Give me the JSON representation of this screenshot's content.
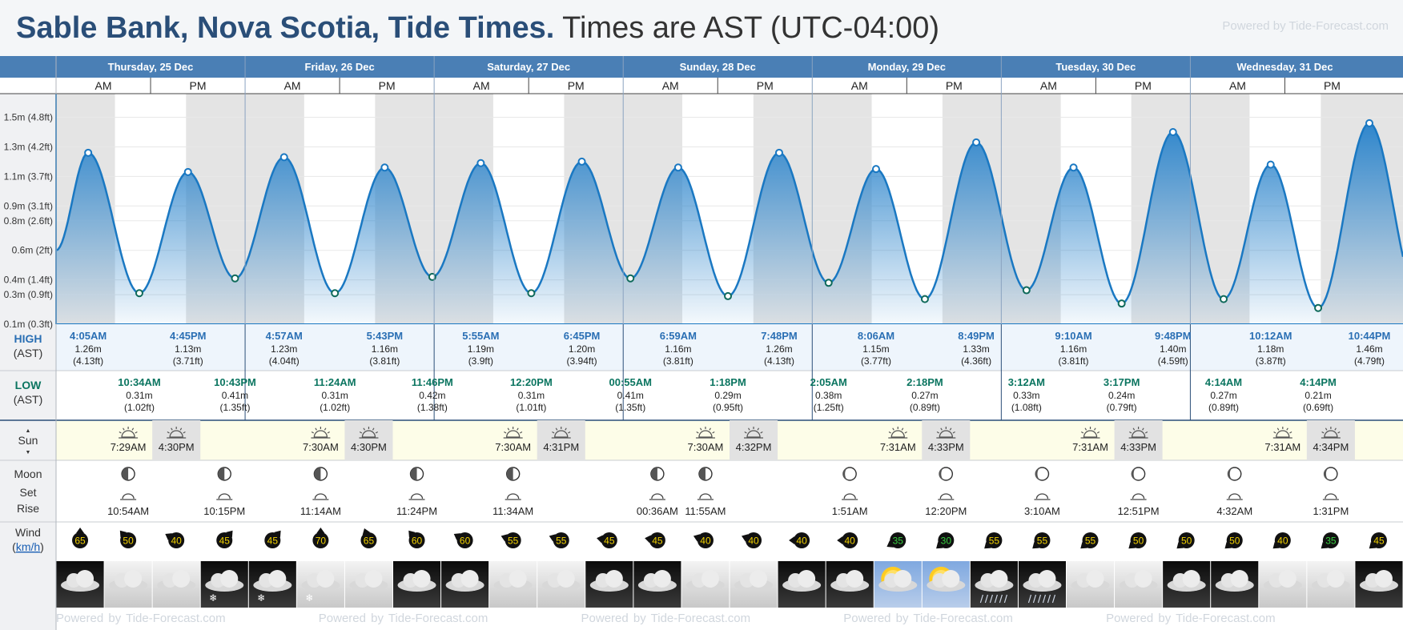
{
  "header": {
    "place": "Sable Bank, Nova Scotia, Tide Times.",
    "timezone": "Times are AST (UTC-04:00)",
    "powered": "Powered by Tide-Forecast.com"
  },
  "labels": {
    "high": "HIGH",
    "low": "LOW",
    "ast": "(AST)",
    "sun": "Sun",
    "moon": "Moon",
    "set": "Set",
    "rise": "Rise",
    "wind": "Wind",
    "wind_unit": "km/h",
    "am": "AM",
    "pm": "PM",
    "sun_arrow_up": "▲",
    "sun_arrow_down": "▼"
  },
  "colors": {
    "header_bar": "#4a7fb5",
    "tide_line": "#1a78c2",
    "tide_fill_top": "#2f86cc",
    "night_band": "#e4e4e4",
    "sun_row": "#fdfde8",
    "wind_high": "#f0d000",
    "wind_low": "#38d040"
  },
  "chart_data": {
    "type": "area",
    "ylabel": "",
    "yticks": [
      "0.1m (0.3ft)",
      "0.3m (0.9ft)",
      "0.4m (1.4ft)",
      "0.6m (2ft)",
      "0.8m (2.6ft)",
      "0.9m (3.1ft)",
      "1.1m (3.7ft)",
      "1.3m (4.2ft)",
      "1.5m (4.8ft)"
    ],
    "ytick_values": [
      0.1,
      0.3,
      0.4,
      0.6,
      0.8,
      0.9,
      1.1,
      1.3,
      1.5
    ],
    "ylim": [
      0.1,
      1.66
    ],
    "xlim_hours": [
      0,
      171
    ],
    "start_level": 0.6,
    "days": [
      "Thursday, 25 Dec",
      "Friday, 26 Dec",
      "Saturday, 27 Dec",
      "Sunday, 28 Dec",
      "Monday, 29 Dec",
      "Tuesday, 30 Dec",
      "Wednesday, 31 Dec"
    ],
    "night_bands": [
      [
        0,
        7.48
      ],
      [
        16.5,
        31.5
      ],
      [
        40.5,
        55.5
      ],
      [
        64.5,
        79.5
      ],
      [
        88.53,
        103.55
      ],
      [
        112.53,
        127.55
      ],
      [
        136.5,
        151.52
      ],
      [
        160.57,
        171
      ]
    ],
    "extremes": [
      {
        "h": 4.08,
        "v": 1.26,
        "type": "high",
        "time": "4:05AM",
        "m": "1.26m",
        "ft": "(4.13ft)"
      },
      {
        "h": 10.57,
        "v": 0.31,
        "type": "low",
        "time": "10:34AM",
        "m": "0.31m",
        "ft": "(1.02ft)"
      },
      {
        "h": 16.75,
        "v": 1.13,
        "type": "high",
        "time": "4:45PM",
        "m": "1.13m",
        "ft": "(3.71ft)"
      },
      {
        "h": 22.72,
        "v": 0.41,
        "type": "low",
        "time": "10:43PM",
        "m": "0.41m",
        "ft": "(1.35ft)"
      },
      {
        "h": 28.95,
        "v": 1.23,
        "type": "high",
        "time": "4:57AM",
        "m": "1.23m",
        "ft": "(4.04ft)"
      },
      {
        "h": 35.4,
        "v": 0.31,
        "type": "low",
        "time": "11:24AM",
        "m": "0.31m",
        "ft": "(1.02ft)"
      },
      {
        "h": 41.72,
        "v": 1.16,
        "type": "high",
        "time": "5:43PM",
        "m": "1.16m",
        "ft": "(3.81ft)"
      },
      {
        "h": 47.77,
        "v": 0.42,
        "type": "low",
        "time": "11:46PM",
        "m": "0.42m",
        "ft": "(1.38ft)"
      },
      {
        "h": 53.92,
        "v": 1.19,
        "type": "high",
        "time": "5:55AM",
        "m": "1.19m",
        "ft": "(3.9ft)"
      },
      {
        "h": 60.33,
        "v": 0.31,
        "type": "low",
        "time": "12:20PM",
        "m": "0.31m",
        "ft": "(1.01ft)"
      },
      {
        "h": 66.75,
        "v": 1.2,
        "type": "high",
        "time": "6:45PM",
        "m": "1.20m",
        "ft": "(3.94ft)"
      },
      {
        "h": 72.92,
        "v": 0.41,
        "type": "low",
        "time": "00:55AM",
        "m": "0.41m",
        "ft": "(1.35ft)"
      },
      {
        "h": 78.98,
        "v": 1.16,
        "type": "high",
        "time": "6:59AM",
        "m": "1.16m",
        "ft": "(3.81ft)"
      },
      {
        "h": 85.3,
        "v": 0.29,
        "type": "low",
        "time": "1:18PM",
        "m": "0.29m",
        "ft": "(0.95ft)"
      },
      {
        "h": 91.8,
        "v": 1.26,
        "type": "high",
        "time": "7:48PM",
        "m": "1.26m",
        "ft": "(4.13ft)"
      },
      {
        "h": 98.08,
        "v": 0.38,
        "type": "low",
        "time": "2:05AM",
        "m": "0.38m",
        "ft": "(1.25ft)"
      },
      {
        "h": 104.1,
        "v": 1.15,
        "type": "high",
        "time": "8:06AM",
        "m": "1.15m",
        "ft": "(3.77ft)"
      },
      {
        "h": 110.3,
        "v": 0.27,
        "type": "low",
        "time": "2:18PM",
        "m": "0.27m",
        "ft": "(0.89ft)"
      },
      {
        "h": 116.82,
        "v": 1.33,
        "type": "high",
        "time": "8:49PM",
        "m": "1.33m",
        "ft": "(4.36ft)"
      },
      {
        "h": 123.2,
        "v": 0.33,
        "type": "low",
        "time": "3:12AM",
        "m": "0.33m",
        "ft": "(1.08ft)"
      },
      {
        "h": 129.17,
        "v": 1.16,
        "type": "high",
        "time": "9:10AM",
        "m": "1.16m",
        "ft": "(3.81ft)"
      },
      {
        "h": 135.28,
        "v": 0.24,
        "type": "low",
        "time": "3:17PM",
        "m": "0.24m",
        "ft": "(0.79ft)"
      },
      {
        "h": 141.8,
        "v": 1.4,
        "type": "high",
        "time": "9:48PM",
        "m": "1.40m",
        "ft": "(4.59ft)"
      },
      {
        "h": 148.23,
        "v": 0.27,
        "type": "low",
        "time": "4:14AM",
        "m": "0.27m",
        "ft": "(0.89ft)"
      },
      {
        "h": 154.2,
        "v": 1.18,
        "type": "high",
        "time": "10:12AM",
        "m": "1.18m",
        "ft": "(3.87ft)"
      },
      {
        "h": 160.23,
        "v": 0.21,
        "type": "low",
        "time": "4:14PM",
        "m": "0.21m",
        "ft": "(0.69ft)"
      },
      {
        "h": 166.73,
        "v": 1.46,
        "type": "high",
        "time": "10:44PM",
        "m": "1.46m",
        "ft": "(4.79ft)"
      }
    ]
  },
  "sun": [
    {
      "col": 1,
      "time": "7:29AM",
      "kind": "rise"
    },
    {
      "col": 2,
      "time": "4:30PM",
      "kind": "set"
    },
    {
      "col": 5,
      "time": "7:30AM",
      "kind": "rise"
    },
    {
      "col": 6,
      "time": "4:30PM",
      "kind": "set"
    },
    {
      "col": 9,
      "time": "7:30AM",
      "kind": "rise"
    },
    {
      "col": 10,
      "time": "4:31PM",
      "kind": "set"
    },
    {
      "col": 13,
      "time": "7:30AM",
      "kind": "rise"
    },
    {
      "col": 14,
      "time": "4:32PM",
      "kind": "set"
    },
    {
      "col": 17,
      "time": "7:31AM",
      "kind": "rise"
    },
    {
      "col": 18,
      "time": "4:33PM",
      "kind": "set"
    },
    {
      "col": 21,
      "time": "7:31AM",
      "kind": "rise"
    },
    {
      "col": 22,
      "time": "4:33PM",
      "kind": "set"
    },
    {
      "col": 25,
      "time": "7:31AM",
      "kind": "rise"
    },
    {
      "col": 26,
      "time": "4:34PM",
      "kind": "set"
    }
  ],
  "moon": [
    {
      "col": 1,
      "time": "10:54AM",
      "kind": "set",
      "phase": "half-left"
    },
    {
      "col": 3,
      "time": "10:15PM",
      "kind": "rise",
      "phase": "half-left"
    },
    {
      "col": 5,
      "time": "11:14AM",
      "kind": "set",
      "phase": "half-left"
    },
    {
      "col": 7,
      "time": "11:24PM",
      "kind": "rise",
      "phase": "half-left"
    },
    {
      "col": 9,
      "time": "11:34AM",
      "kind": "set",
      "phase": "half-left"
    },
    {
      "col": 12,
      "time": "00:36AM",
      "kind": "rise",
      "phase": "half-left"
    },
    {
      "col": 13,
      "time": "11:55AM",
      "kind": "set",
      "phase": "half-left"
    },
    {
      "col": 16,
      "time": "1:51AM",
      "kind": "rise",
      "phase": "crescent"
    },
    {
      "col": 18,
      "time": "12:20PM",
      "kind": "set",
      "phase": "crescent"
    },
    {
      "col": 20,
      "time": "3:10AM",
      "kind": "rise",
      "phase": "crescent"
    },
    {
      "col": 22,
      "time": "12:51PM",
      "kind": "set",
      "phase": "crescent"
    },
    {
      "col": 24,
      "time": "4:32AM",
      "kind": "rise",
      "phase": "crescent"
    },
    {
      "col": 26,
      "time": "1:31PM",
      "kind": "set",
      "phase": "crescent"
    }
  ],
  "wind": [
    {
      "v": "65",
      "dir": 180,
      "c": "y"
    },
    {
      "v": "50",
      "dir": 140,
      "c": "y"
    },
    {
      "v": "40",
      "dir": 120,
      "c": "y"
    },
    {
      "v": "45",
      "dir": 220,
      "c": "y"
    },
    {
      "v": "45",
      "dir": 220,
      "c": "y"
    },
    {
      "v": "70",
      "dir": 180,
      "c": "y"
    },
    {
      "v": "65",
      "dir": 160,
      "c": "y"
    },
    {
      "v": "60",
      "dir": 140,
      "c": "y"
    },
    {
      "v": "60",
      "dir": 120,
      "c": "y"
    },
    {
      "v": "55",
      "dir": 110,
      "c": "y"
    },
    {
      "v": "55",
      "dir": 110,
      "c": "y"
    },
    {
      "v": "45",
      "dir": 100,
      "c": "y"
    },
    {
      "v": "45",
      "dir": 100,
      "c": "y"
    },
    {
      "v": "40",
      "dir": 110,
      "c": "y"
    },
    {
      "v": "40",
      "dir": 110,
      "c": "y"
    },
    {
      "v": "40",
      "dir": 90,
      "c": "y"
    },
    {
      "v": "40",
      "dir": 90,
      "c": "y"
    },
    {
      "v": "35",
      "dir": 60,
      "c": "g"
    },
    {
      "v": "30",
      "dir": 50,
      "c": "g"
    },
    {
      "v": "55",
      "dir": 50,
      "c": "y"
    },
    {
      "v": "55",
      "dir": 50,
      "c": "y"
    },
    {
      "v": "55",
      "dir": 50,
      "c": "y"
    },
    {
      "v": "50",
      "dir": 50,
      "c": "y"
    },
    {
      "v": "50",
      "dir": 50,
      "c": "y"
    },
    {
      "v": "50",
      "dir": 50,
      "c": "y"
    },
    {
      "v": "40",
      "dir": 50,
      "c": "y"
    },
    {
      "v": "35",
      "dir": 50,
      "c": "g"
    },
    {
      "v": "45",
      "dir": 50,
      "c": "y"
    }
  ],
  "weather": [
    {
      "icon": "cloud-night",
      "snow": false,
      "rain": false
    },
    {
      "icon": "cloud-day",
      "snow": false,
      "rain": false
    },
    {
      "icon": "cloud-day",
      "snow": false,
      "rain": false
    },
    {
      "icon": "cloud-night",
      "snow": true,
      "rain": false
    },
    {
      "icon": "cloud-night",
      "snow": true,
      "rain": false
    },
    {
      "icon": "cloud-day",
      "snow": true,
      "rain": false
    },
    {
      "icon": "cloud-day",
      "snow": false,
      "rain": false
    },
    {
      "icon": "cloud-night",
      "snow": false,
      "rain": false
    },
    {
      "icon": "cloud-night",
      "snow": false,
      "rain": false
    },
    {
      "icon": "cloud-day",
      "snow": false,
      "rain": false
    },
    {
      "icon": "cloud-day",
      "snow": false,
      "rain": false
    },
    {
      "icon": "cloud-night",
      "snow": false,
      "rain": false
    },
    {
      "icon": "cloud-night",
      "snow": false,
      "rain": false
    },
    {
      "icon": "cloud-day",
      "snow": false,
      "rain": false
    },
    {
      "icon": "cloud-day",
      "snow": false,
      "rain": false
    },
    {
      "icon": "cloud-night",
      "snow": false,
      "rain": false
    },
    {
      "icon": "cloud-night",
      "snow": false,
      "rain": false
    },
    {
      "icon": "sun-cloud",
      "snow": false,
      "rain": false
    },
    {
      "icon": "sun-cloud",
      "snow": false,
      "rain": false
    },
    {
      "icon": "cloud-night",
      "snow": false,
      "rain": true
    },
    {
      "icon": "cloud-night",
      "snow": false,
      "rain": true
    },
    {
      "icon": "cloud-day",
      "snow": false,
      "rain": false
    },
    {
      "icon": "cloud-day",
      "snow": false,
      "rain": false
    },
    {
      "icon": "cloud-night",
      "snow": false,
      "rain": false
    },
    {
      "icon": "cloud-night",
      "snow": false,
      "rain": false
    },
    {
      "icon": "cloud-day",
      "snow": false,
      "rain": false
    },
    {
      "icon": "cloud-day",
      "snow": false,
      "rain": false
    },
    {
      "icon": "cloud-night",
      "snow": false,
      "rain": false
    }
  ]
}
